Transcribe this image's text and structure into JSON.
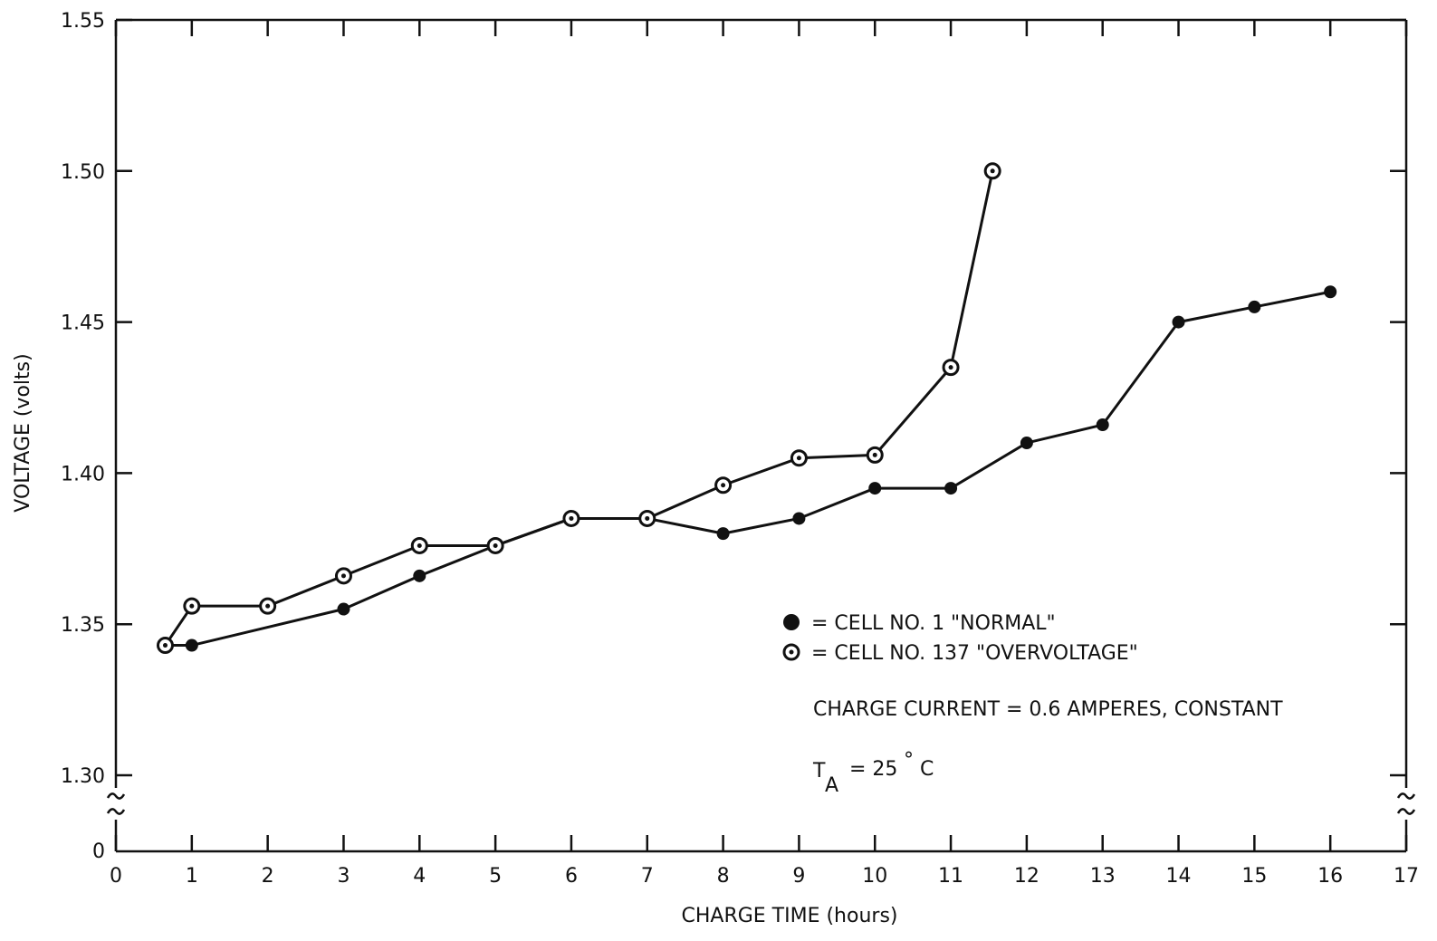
{
  "chart_data": {
    "type": "line",
    "xlabel": "CHARGE TIME (hours)",
    "ylabel": "VOLTAGE (volts)",
    "xlim": [
      0,
      17
    ],
    "ylim": [
      1.3,
      1.55
    ],
    "y_axis_break": true,
    "y_axis_break_zero_label": "0",
    "grid": false,
    "x_ticks": [
      0,
      1,
      2,
      3,
      4,
      5,
      6,
      7,
      8,
      9,
      10,
      11,
      12,
      13,
      14,
      15,
      16,
      17
    ],
    "y_ticks": [
      1.3,
      1.35,
      1.4,
      1.45,
      1.5,
      1.55
    ],
    "x_tick_labels": [
      "0",
      "1",
      "2",
      "3",
      "4",
      "5",
      "6",
      "7",
      "8",
      "9",
      "10",
      "11",
      "12",
      "13",
      "14",
      "15",
      "16",
      "17"
    ],
    "y_tick_labels": [
      "1.30",
      "1.35",
      "1.40",
      "1.45",
      "1.50",
      "1.55"
    ],
    "legend_position": "center-right",
    "series": [
      {
        "name": "= CELL NO. 1 \"NORMAL\"",
        "marker": "filled-circle",
        "color": "#111111",
        "x": [
          1,
          3,
          4,
          5,
          6,
          7,
          8,
          9,
          10,
          11,
          12,
          13,
          14,
          15,
          16
        ],
        "y": [
          1.343,
          1.355,
          1.366,
          1.376,
          1.385,
          1.385,
          1.38,
          1.385,
          1.395,
          1.395,
          1.41,
          1.416,
          1.45,
          1.455,
          1.46
        ]
      },
      {
        "name": "= CELL NO. 137 \"OVERVOLTAGE\"",
        "marker": "dotted-circle",
        "color": "#111111",
        "x": [
          0.65,
          1,
          2,
          3,
          4,
          5,
          6,
          7,
          8,
          9,
          10,
          11,
          11.55
        ],
        "y": [
          1.343,
          1.356,
          1.356,
          1.366,
          1.376,
          1.376,
          1.385,
          1.385,
          1.396,
          1.405,
          1.406,
          1.435,
          1.5
        ]
      }
    ],
    "shared_first_point": {
      "x": 0.65,
      "y": 1.343
    },
    "annotations": {
      "charge_current": "CHARGE CURRENT = 0.6 AMPERES, CONSTANT",
      "temp_symbol": "T",
      "temp_subscript": "A",
      "temp_value": "= 25",
      "temp_degree": "°",
      "temp_unit": "C"
    }
  }
}
